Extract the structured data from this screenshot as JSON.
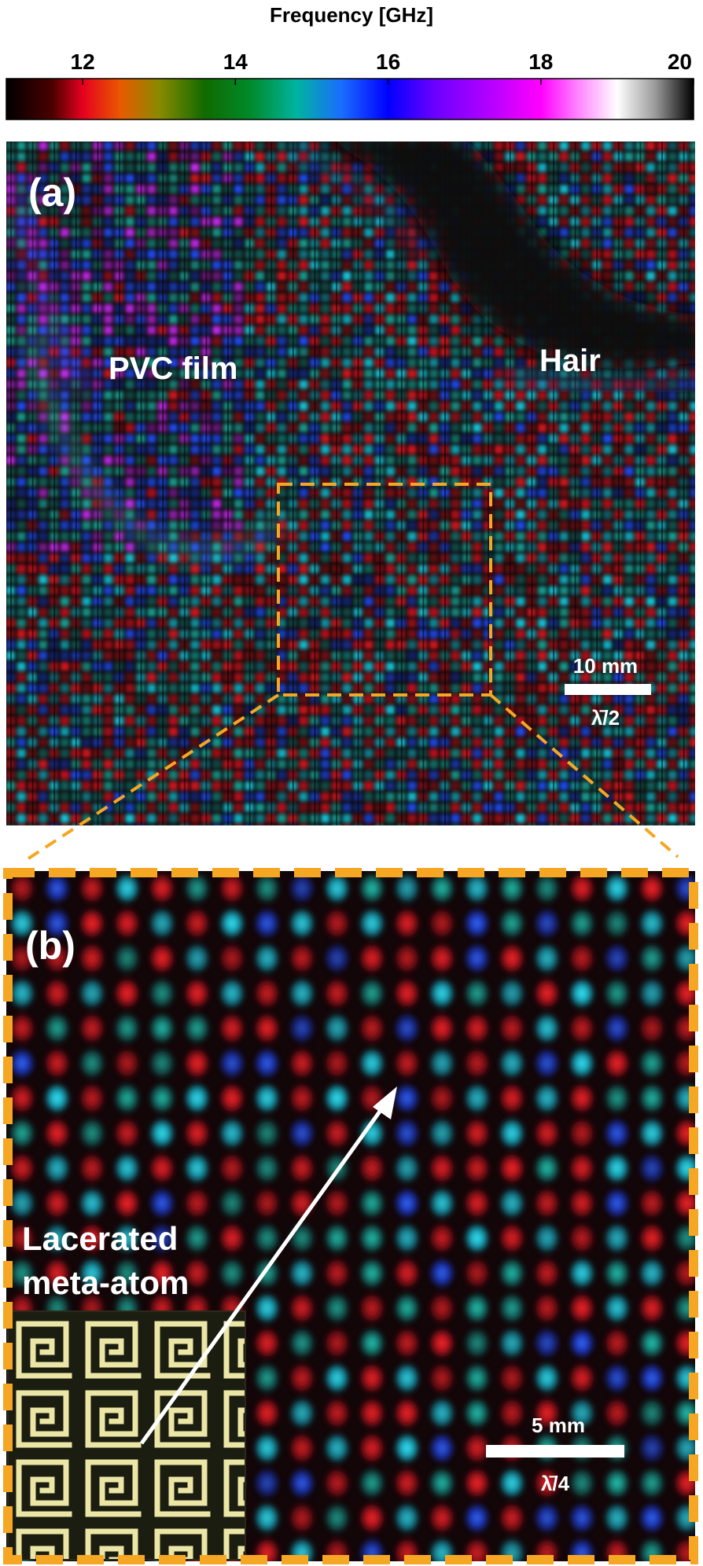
{
  "colorbar": {
    "title": "Frequency [GHz]",
    "range": [
      11,
      20
    ],
    "ticks": [
      "12",
      "14",
      "16",
      "18",
      "20"
    ],
    "tick_values": [
      12,
      14,
      16,
      18,
      20
    ],
    "stops": [
      {
        "f": 11.0,
        "color": "#000000"
      },
      {
        "f": 11.6,
        "color": "#4a0000"
      },
      {
        "f": 12.0,
        "color": "#e6001e"
      },
      {
        "f": 12.5,
        "color": "#e85a00"
      },
      {
        "f": 13.0,
        "color": "#8a8a00"
      },
      {
        "f": 13.6,
        "color": "#106a00"
      },
      {
        "f": 14.2,
        "color": "#008a2a"
      },
      {
        "f": 14.8,
        "color": "#00b4a0"
      },
      {
        "f": 15.4,
        "color": "#1a6cff"
      },
      {
        "f": 16.0,
        "color": "#0000ff"
      },
      {
        "f": 16.6,
        "color": "#6a00ff"
      },
      {
        "f": 17.3,
        "color": "#b000ff"
      },
      {
        "f": 18.0,
        "color": "#ff00ff"
      },
      {
        "f": 18.5,
        "color": "#ff88ff"
      },
      {
        "f": 19.0,
        "color": "#ffffff"
      },
      {
        "f": 19.5,
        "color": "#9a9a9a"
      },
      {
        "f": 20.0,
        "color": "#000000"
      }
    ]
  },
  "panel_a": {
    "label": "(a)",
    "annotation_film": "PVC film",
    "annotation_hair": "Hair",
    "scalebar_length": "10 mm",
    "scalebar_wavelength": "λ̄/2",
    "inset_box_color": "#f5a623"
  },
  "panel_b": {
    "label": "(b)",
    "callout": [
      "Lacerated",
      "meta-atom"
    ],
    "scalebar_length": "5 mm",
    "scalebar_wavelength": "λ̄/4",
    "frame_color": "#f5a623"
  },
  "pixel_palette": {
    "red": "#e0141e",
    "cyan": "#14d2e6",
    "teal": "#18a89a",
    "blue": "#1e50ff",
    "magenta": "#d22cff"
  }
}
